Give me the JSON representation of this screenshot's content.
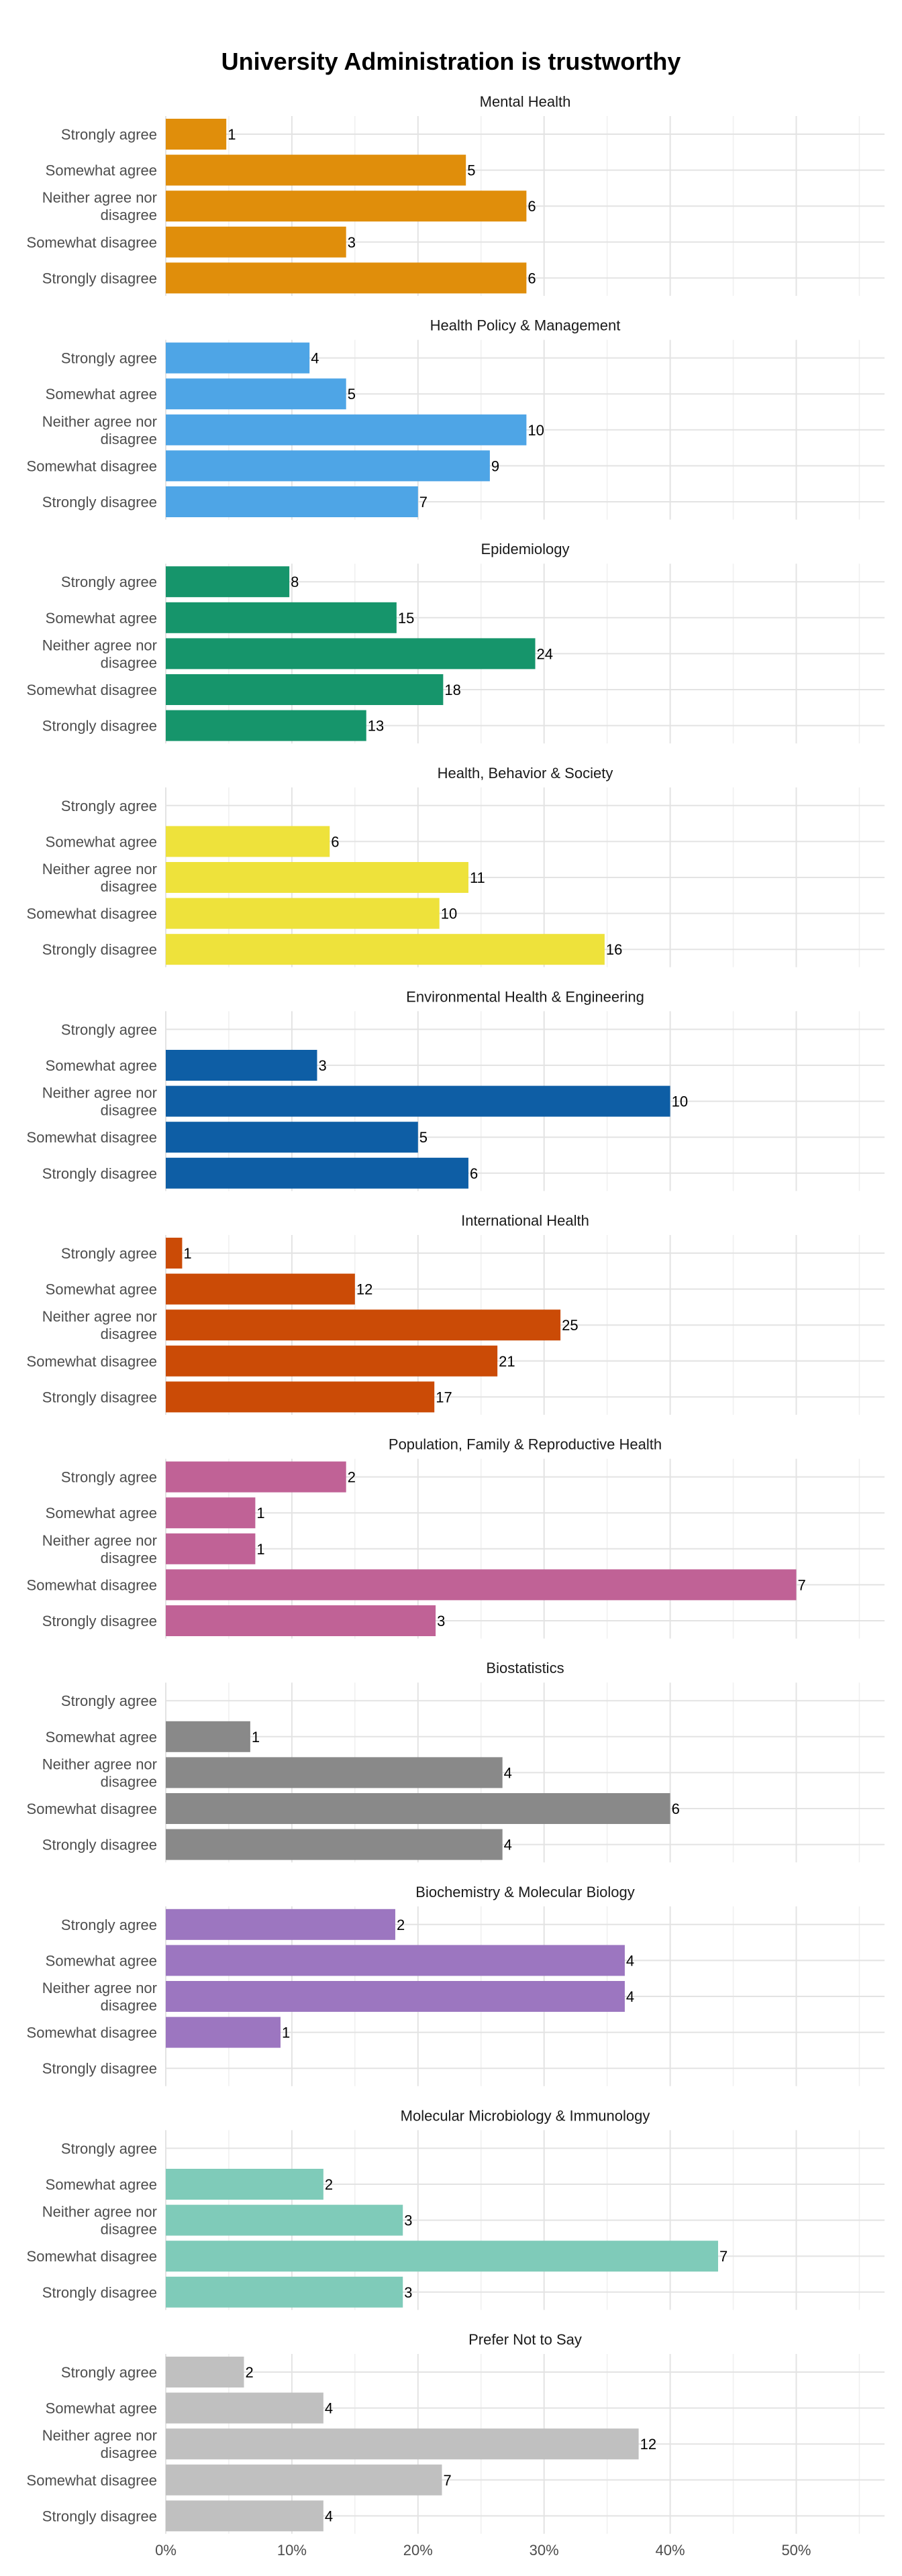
{
  "chart_data": {
    "type": "bar",
    "orientation": "horizontal",
    "title": "University Administration is trustworthy",
    "categories": [
      "Strongly agree",
      "Somewhat agree",
      "Neither agree nor disagree",
      "Somewhat disagree",
      "Strongly disagree"
    ],
    "x_ticks": [
      "0%",
      "10%",
      "20%",
      "30%",
      "40%",
      "50%"
    ],
    "xlim": [
      0,
      0.57
    ],
    "grid": true,
    "facets": [
      {
        "name": "Mental Health",
        "color": "#E08E0B",
        "counts": [
          1,
          5,
          6,
          3,
          6
        ],
        "percents": [
          0.048,
          0.238,
          0.286,
          0.143,
          0.286
        ]
      },
      {
        "name": "Health Policy & Management",
        "color": "#4EA5E6",
        "counts": [
          4,
          5,
          10,
          9,
          7
        ],
        "percents": [
          0.114,
          0.143,
          0.286,
          0.257,
          0.2
        ]
      },
      {
        "name": "Epidemiology",
        "color": "#16956B",
        "counts": [
          8,
          15,
          24,
          18,
          13
        ],
        "percents": [
          0.098,
          0.183,
          0.293,
          0.22,
          0.159
        ]
      },
      {
        "name": "Health, Behavior & Society",
        "color": "#EEE23B",
        "counts": [
          null,
          6,
          11,
          10,
          16
        ],
        "percents": [
          0,
          0.13,
          0.24,
          0.217,
          0.348
        ]
      },
      {
        "name": "Environmental Health & Engineering",
        "color": "#0E5EA5",
        "counts": [
          null,
          3,
          10,
          5,
          6
        ],
        "percents": [
          0,
          0.12,
          0.4,
          0.2,
          0.24
        ]
      },
      {
        "name": "International Health",
        "color": "#CB4B06",
        "counts": [
          1,
          12,
          25,
          21,
          17
        ],
        "percents": [
          0.013,
          0.15,
          0.313,
          0.263,
          0.213
        ]
      },
      {
        "name": "Population, Family & Reproductive Health",
        "color": "#C06296",
        "counts": [
          2,
          1,
          1,
          7,
          3
        ],
        "percents": [
          0.143,
          0.071,
          0.071,
          0.5,
          0.214
        ]
      },
      {
        "name": "Biostatistics",
        "color": "#898989",
        "counts": [
          null,
          1,
          4,
          6,
          4
        ],
        "percents": [
          0,
          0.067,
          0.267,
          0.4,
          0.267
        ]
      },
      {
        "name": "Biochemistry & Molecular Biology",
        "color": "#9C76C0",
        "counts": [
          2,
          4,
          4,
          1,
          null
        ],
        "percents": [
          0.182,
          0.364,
          0.364,
          0.091,
          0
        ]
      },
      {
        "name": "Molecular Microbiology & Immunology",
        "color": "#7FCBB9",
        "counts": [
          null,
          2,
          3,
          7,
          3
        ],
        "percents": [
          0,
          0.125,
          0.188,
          0.438,
          0.188
        ]
      },
      {
        "name": "Prefer Not to Say",
        "color": "#C0C0C0",
        "counts": [
          2,
          4,
          12,
          7,
          4
        ],
        "percents": [
          0.062,
          0.125,
          0.375,
          0.219,
          0.125
        ]
      }
    ]
  }
}
